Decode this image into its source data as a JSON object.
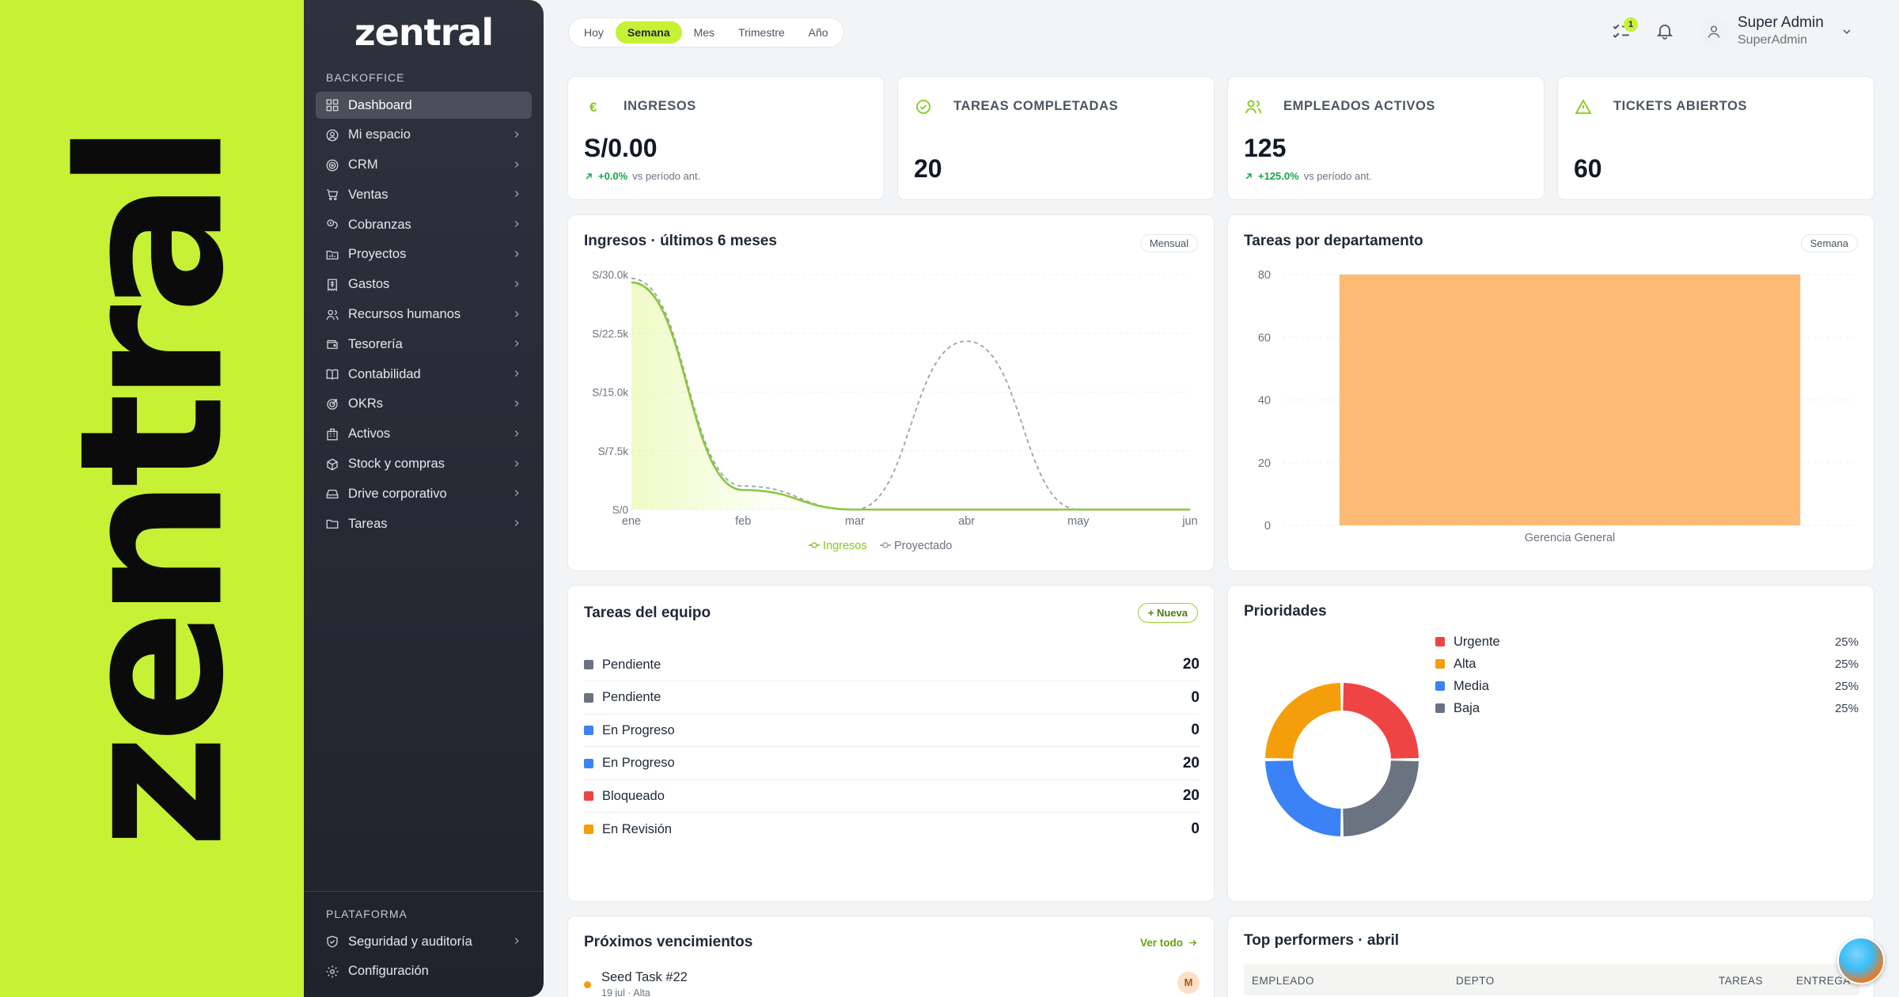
{
  "brand": {
    "big_logo": "zentral",
    "logo": "zentral"
  },
  "sidebar": {
    "section_backoffice": "BACKOFFICE",
    "items": [
      {
        "label": "Dashboard",
        "icon": "dashboard-icon",
        "active": true
      },
      {
        "label": "Mi espacio",
        "icon": "user-circle-icon"
      },
      {
        "label": "CRM",
        "icon": "target-icon"
      },
      {
        "label": "Ventas",
        "icon": "cart-icon"
      },
      {
        "label": "Cobranzas",
        "icon": "coins-icon"
      },
      {
        "label": "Proyectos",
        "icon": "folder-chart-icon"
      },
      {
        "label": "Gastos",
        "icon": "receipt-icon"
      },
      {
        "label": "Recursos humanos",
        "icon": "users-icon"
      },
      {
        "label": "Tesorería",
        "icon": "wallet-icon"
      },
      {
        "label": "Contabilidad",
        "icon": "book-icon"
      },
      {
        "label": "OKRs",
        "icon": "goal-icon"
      },
      {
        "label": "Activos",
        "icon": "building-icon"
      },
      {
        "label": "Stock y compras",
        "icon": "box-icon"
      },
      {
        "label": "Drive corporativo",
        "icon": "drive-icon"
      },
      {
        "label": "Tareas",
        "icon": "folder-icon"
      }
    ],
    "section_plataforma": "PLATAFORMA",
    "platform_items": [
      {
        "label": "Seguridad y auditoría",
        "icon": "shield-icon"
      },
      {
        "label": "Configuración",
        "icon": "gear-icon"
      }
    ]
  },
  "periods": [
    "Hoy",
    "Semana",
    "Mes",
    "Trimestre",
    "Año"
  ],
  "active_period": "Semana",
  "header": {
    "tasks_badge": "1",
    "user_name": "Super Admin",
    "user_role": "SuperAdmin"
  },
  "kpis": [
    {
      "title": "INGRESOS",
      "value": "S/0.00",
      "delta": "+0.0%",
      "delta_note": "vs período ant.",
      "icon": "euro-icon"
    },
    {
      "title": "TAREAS COMPLETADAS",
      "value": "20",
      "icon": "check-circle-icon"
    },
    {
      "title": "EMPLEADOS ACTIVOS",
      "value": "125",
      "delta": "+125.0%",
      "delta_note": "vs período ant.",
      "icon": "users-icon"
    },
    {
      "title": "TICKETS ABIERTOS",
      "value": "60",
      "icon": "warning-icon"
    }
  ],
  "revenue_card": {
    "title": "Ingresos · últimos 6 meses",
    "pill": "Mensual"
  },
  "dept_card": {
    "title": "Tareas por departamento",
    "pill": "Semana"
  },
  "team_tasks": {
    "title": "Tareas del equipo",
    "new_button": "+ Nueva",
    "rows": [
      {
        "label": "Pendiente",
        "value": "20",
        "color": "#6b7280"
      },
      {
        "label": "Pendiente",
        "value": "0",
        "color": "#6b7280"
      },
      {
        "label": "En Progreso",
        "value": "0",
        "color": "#3b82f6"
      },
      {
        "label": "En Progreso",
        "value": "20",
        "color": "#3b82f6"
      },
      {
        "label": "Bloqueado",
        "value": "20",
        "color": "#ef4444"
      },
      {
        "label": "En Revisión",
        "value": "0",
        "color": "#f59e0b"
      }
    ]
  },
  "priorities": {
    "title": "Prioridades",
    "rows": [
      {
        "label": "Urgente",
        "pct": "25%",
        "color": "#ef4444"
      },
      {
        "label": "Alta",
        "pct": "25%",
        "color": "#f59e0b"
      },
      {
        "label": "Media",
        "pct": "25%",
        "color": "#3b82f6"
      },
      {
        "label": "Baja",
        "pct": "25%",
        "color": "#6b7280"
      }
    ]
  },
  "upcoming": {
    "title": "Próximos vencimientos",
    "see_all": "Ver todo",
    "items": [
      {
        "title": "Seed Task #22",
        "meta": "19 jul · Alta",
        "avatar": "M"
      }
    ]
  },
  "top_performers": {
    "title": "Top performers · abril",
    "columns": [
      "EMPLEADO",
      "DEPTO",
      "TAREAS",
      "ENTREGA"
    ]
  },
  "chart_data": [
    {
      "type": "line",
      "title": "Ingresos · últimos 6 meses",
      "categories": [
        "ene",
        "feb",
        "mar",
        "abr",
        "may",
        "jun"
      ],
      "y_ticks": [
        "S/0",
        "S/7.5k",
        "S/15.0k",
        "S/22.5k",
        "S/30.0k"
      ],
      "ylim": [
        0,
        30000
      ],
      "series": [
        {
          "name": "Ingresos",
          "values": [
            29000,
            2500,
            0,
            0,
            0,
            0
          ],
          "color": "#8cc63f"
        },
        {
          "name": "Proyectado",
          "values": [
            29500,
            3000,
            0,
            21500,
            0,
            0
          ],
          "color": "#9ca3af",
          "dashed": true
        }
      ],
      "legend": "bottom"
    },
    {
      "type": "bar",
      "title": "Tareas por departamento",
      "categories": [
        "Gerencia General"
      ],
      "values": [
        80
      ],
      "y_ticks": [
        "0",
        "20",
        "40",
        "60",
        "80"
      ],
      "ylim": [
        0,
        80
      ],
      "color": "#fdba74"
    },
    {
      "type": "pie",
      "title": "Prioridades",
      "labels": [
        "Urgente",
        "Baja",
        "Media",
        "Alta"
      ],
      "values": [
        25,
        25,
        25,
        25
      ],
      "colors": [
        "#ef4444",
        "#6b7280",
        "#3b82f6",
        "#f59e0b"
      ]
    }
  ]
}
